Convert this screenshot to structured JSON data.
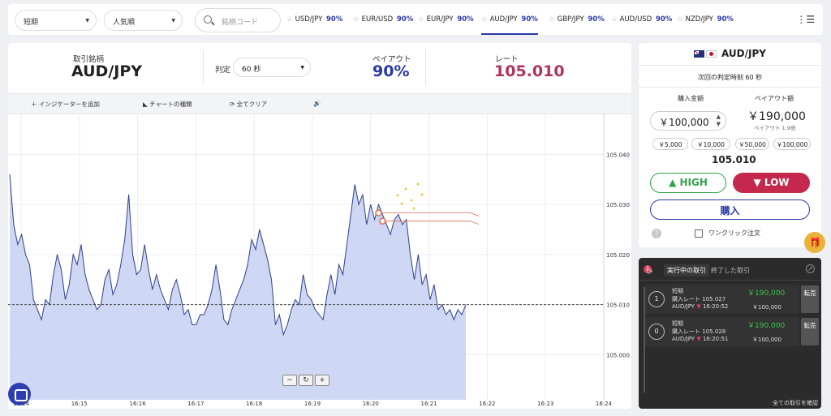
{
  "topbar": {
    "term_select": "短期",
    "sort_select": "人気順",
    "search_placeholder": "銘柄コード",
    "tabs": [
      {
        "pair": "USD/JPY",
        "payout": "90%"
      },
      {
        "pair": "EUR/USD",
        "payout": "90%"
      },
      {
        "pair": "EUR/JPY",
        "payout": "90%"
      },
      {
        "pair": "AUD/JPY",
        "payout": "90%"
      },
      {
        "pair": "GBP/JPY",
        "payout": "90%"
      },
      {
        "pair": "AUD/USD",
        "payout": "90%"
      },
      {
        "pair": "NZD/JPY",
        "payout": "90%"
      }
    ],
    "active_tab": "AUD/JPY"
  },
  "info": {
    "symbol_label": "取引銘柄",
    "symbol": "AUD/JPY",
    "judge_label": "判定",
    "judge_value": "60 秒",
    "payout_label": "ペイアウト",
    "payout_value": "90%",
    "rate_label": "レート",
    "rate_value": "105.010"
  },
  "toolbar": {
    "add_indicator": "インジケーターを追加",
    "chart_type": "チャートの種類",
    "clear_all": "全てクリア"
  },
  "chart_data": {
    "type": "area",
    "y_ticks": [
      "105.040",
      "105.030",
      "105.020",
      "105.010",
      "105.000"
    ],
    "x_ticks": [
      "16:14",
      "16:15",
      "16:16",
      "16:17",
      "16:18",
      "16:19",
      "16:20",
      "16:21",
      "16:22",
      "16:23",
      "16:24"
    ],
    "current_rate": 105.01,
    "ylim": [
      104.991,
      105.048
    ],
    "series": [
      {
        "values": [
          [
            0,
            105.036
          ],
          [
            1,
            105.026
          ],
          [
            2,
            105.022
          ],
          [
            3,
            105.024
          ],
          [
            4,
            105.02
          ],
          [
            5,
            105.018
          ],
          [
            6,
            105.011
          ],
          [
            7,
            105.009
          ],
          [
            8,
            105.007
          ],
          [
            9,
            105.011
          ],
          [
            10,
            105.01
          ],
          [
            11,
            105.016
          ],
          [
            12,
            105.02
          ],
          [
            13,
            105.017
          ],
          [
            14,
            105.011
          ],
          [
            15,
            105.014
          ],
          [
            16,
            105.02
          ],
          [
            17,
            105.018
          ],
          [
            18,
            105.022
          ],
          [
            19,
            105.016
          ],
          [
            20,
            105.013
          ],
          [
            21,
            105.011
          ],
          [
            22,
            105.009
          ],
          [
            23,
            105.01
          ],
          [
            24,
            105.015
          ],
          [
            25,
            105.017
          ],
          [
            26,
            105.012
          ],
          [
            27,
            105.014
          ],
          [
            28,
            105.018
          ],
          [
            29,
            105.023
          ],
          [
            30,
            105.032
          ],
          [
            31,
            105.02
          ],
          [
            32,
            105.016
          ],
          [
            33,
            105.017
          ],
          [
            34,
            105.022
          ],
          [
            35,
            105.017
          ],
          [
            36,
            105.013
          ],
          [
            37,
            105.016
          ],
          [
            38,
            105.013
          ],
          [
            39,
            105.011
          ],
          [
            40,
            105.009
          ],
          [
            41,
            105.013
          ],
          [
            42,
            105.015
          ],
          [
            43,
            105.012
          ],
          [
            44,
            105.008
          ],
          [
            45,
            105.009
          ],
          [
            46,
            105.006
          ],
          [
            47,
            105.006
          ],
          [
            48,
            105.008
          ],
          [
            49,
            105.008
          ],
          [
            50,
            105.01
          ],
          [
            51,
            105.013
          ],
          [
            52,
            105.018
          ],
          [
            53,
            105.013
          ],
          [
            54,
            105.007
          ],
          [
            55,
            105.006
          ],
          [
            56,
            105.009
          ],
          [
            57,
            105.011
          ],
          [
            58,
            105.013
          ],
          [
            59,
            105.015
          ],
          [
            60,
            105.018
          ],
          [
            61,
            105.023
          ],
          [
            62,
            105.021
          ],
          [
            63,
            105.025
          ],
          [
            64,
            105.022
          ],
          [
            65,
            105.019
          ],
          [
            66,
            105.015
          ],
          [
            67,
            105.006
          ],
          [
            68,
            105.008
          ],
          [
            69,
            105.004
          ],
          [
            70,
            105.006
          ],
          [
            71,
            105.009
          ],
          [
            72,
            105.011
          ],
          [
            73,
            105.01
          ],
          [
            74,
            105.016
          ],
          [
            75,
            105.012
          ],
          [
            76,
            105.011
          ],
          [
            77,
            105.009
          ],
          [
            78,
            105.008
          ],
          [
            79,
            105.007
          ],
          [
            80,
            105.012
          ],
          [
            81,
            105.016
          ],
          [
            82,
            105.012
          ],
          [
            83,
            105.018
          ],
          [
            84,
            105.016
          ],
          [
            85,
            105.022
          ],
          [
            86,
            105.028
          ],
          [
            87,
            105.034
          ],
          [
            88,
            105.03
          ],
          [
            89,
            105.032
          ],
          [
            90,
            105.026
          ],
          [
            91,
            105.03
          ],
          [
            92,
            105.027
          ],
          [
            93,
            105.03
          ],
          [
            94,
            105.028
          ],
          [
            95,
            105.026
          ],
          [
            96,
            105.024
          ],
          [
            97,
            105.027
          ],
          [
            98,
            105.028
          ],
          [
            99,
            105.026
          ],
          [
            100,
            105.027
          ],
          [
            101,
            105.02
          ],
          [
            102,
            105.015
          ],
          [
            103,
            105.02
          ],
          [
            104,
            105.014
          ],
          [
            105,
            105.016
          ],
          [
            106,
            105.011
          ],
          [
            107,
            105.014
          ],
          [
            108,
            105.009
          ],
          [
            109,
            105.01
          ],
          [
            110,
            105.008
          ],
          [
            111,
            105.009
          ],
          [
            112,
            105.007
          ],
          [
            113,
            105.009
          ],
          [
            114,
            105.008
          ],
          [
            115,
            105.01
          ]
        ]
      }
    ]
  },
  "order": {
    "pair": "AUD/JPY",
    "next_judge": "次回の判定時刻 60 秒",
    "amount_label": "購入金額",
    "payout_label": "ペイアウト額",
    "amount": "￥100,000",
    "payout_amount": "￥190,000",
    "payout_multiplier": "ペイアウト 1.9倍",
    "quick_amounts": [
      "￥5,000",
      "￥10,000",
      "￥50,000",
      "￥100,000"
    ],
    "rate": "105.010",
    "high_label": "HIGH",
    "low_label": "LOW",
    "buy_label": "購入",
    "one_click_label": "ワンクリック注文"
  },
  "trades": {
    "badge": "2",
    "tab_active": "実行中の取引",
    "tab_done": "終了した取引",
    "see_all": "全ての取引を確認",
    "items": [
      {
        "num": "1",
        "type": "短期",
        "rate_label": "購入レート",
        "rate": "105.027",
        "pair": "AUD/JPY",
        "time": "16:20:52",
        "payout": "￥190,000",
        "amount": "￥100,000",
        "sell": "転売"
      },
      {
        "num": "0",
        "type": "短期",
        "rate_label": "購入レート",
        "rate": "105.028",
        "pair": "AUD/JPY",
        "time": "16:20:51",
        "payout": "￥190,000",
        "amount": "￥100,000",
        "sell": "転売"
      }
    ]
  },
  "colors": {
    "accent": "#2a39a8",
    "high": "#2fa34b",
    "low": "#c5284d",
    "rate": "#b23358",
    "area": "#c9d3f2",
    "line": "#2f3f8f"
  }
}
